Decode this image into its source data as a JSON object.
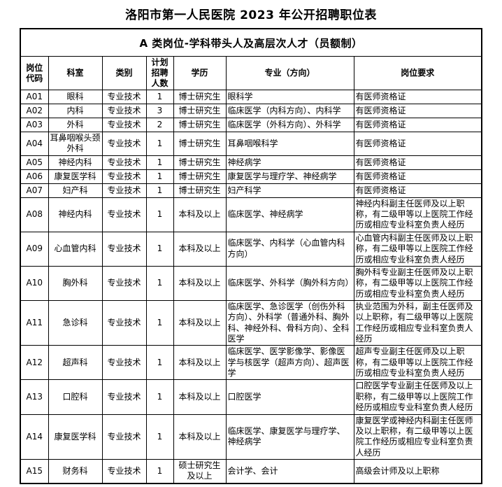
{
  "page": {
    "title": "洛阳市第一人民医院 2023 年公开招聘职位表"
  },
  "colors": {
    "background": "#ffffff",
    "text": "#000000",
    "border": "#000000"
  },
  "table": {
    "band_title": "A 类岗位-学科带头人及高层次人才（员额制）",
    "headers": {
      "code": "岗位代码",
      "dept": "科室",
      "category": "类别",
      "count": "计划招聘人数",
      "education": "学历",
      "major": "专业（方向）",
      "requirement": "岗位要求"
    },
    "rows": [
      {
        "code": "A01",
        "dept": "眼科",
        "category": "专业技术",
        "count": 1,
        "education": "博士研究生",
        "major": "眼科学",
        "requirement": "有医师资格证"
      },
      {
        "code": "A02",
        "dept": "内科",
        "category": "专业技术",
        "count": 3,
        "education": "博士研究生",
        "major": "临床医学（内科方向）、内科学",
        "requirement": "有医师资格证"
      },
      {
        "code": "A03",
        "dept": "外科",
        "category": "专业技术",
        "count": 2,
        "education": "博士研究生",
        "major": "临床医学（外科方向）、外科学",
        "requirement": "有医师资格证"
      },
      {
        "code": "A04",
        "dept": "耳鼻咽喉头颈外科",
        "category": "专业技术",
        "count": 1,
        "education": "博士研究生",
        "major": "耳鼻咽喉科学",
        "requirement": "有医师资格证"
      },
      {
        "code": "A05",
        "dept": "神经内科",
        "category": "专业技术",
        "count": 1,
        "education": "博士研究生",
        "major": "神经病学",
        "requirement": "有医师资格证"
      },
      {
        "code": "A06",
        "dept": "康复医学科",
        "category": "专业技术",
        "count": 1,
        "education": "博士研究生",
        "major": "康复医学与理疗学、神经病学",
        "requirement": "有医师资格证"
      },
      {
        "code": "A07",
        "dept": "妇产科",
        "category": "专业技术",
        "count": 1,
        "education": "博士研究生",
        "major": "妇产科学",
        "requirement": "有医师资格证"
      },
      {
        "code": "A08",
        "dept": "神经内科",
        "category": "专业技术",
        "count": 1,
        "education": "本科及以上",
        "major": "临床医学、神经病学",
        "requirement": "神经内科副主任医师及以上职称，有二级甲等以上医院工作经历或相应专业科室负责人经历"
      },
      {
        "code": "A09",
        "dept": "心血管内科",
        "category": "专业技术",
        "count": 1,
        "education": "本科及以上",
        "major": "临床医学、内科学（心血管内科方向）",
        "requirement": "心血管内科副主任医师及以上职称，有二级甲等以上医院工作经历或相应专业科室负责人经历"
      },
      {
        "code": "A10",
        "dept": "胸外科",
        "category": "专业技术",
        "count": 1,
        "education": "本科及以上",
        "major": "临床医学、外科学（胸外科方向）",
        "requirement": "胸外科专业副主任医师及以上职称，有二级甲等以上医院工作经历或相应专业科室负责人经历"
      },
      {
        "code": "A11",
        "dept": "急诊科",
        "category": "专业技术",
        "count": 1,
        "education": "本科及以上",
        "major": "临床医学、急诊医学（创伤外科方向）、外科学（普通外科、胸外科、神经外科、骨科方向）、全科医学",
        "requirement": "执业范围为外科，副主任医师及以上职称，有二级甲等以上医院工作经历或相应专业科室负责人经历"
      },
      {
        "code": "A12",
        "dept": "超声科",
        "category": "专业技术",
        "count": 1,
        "education": "本科及以上",
        "major": "临床医学、医学影像学、影像医学与核医学（超声方向）、超声医学",
        "requirement": "超声专业副主任医师及以上职称，有二级甲等以上医院工作经历或相应专业科室负责人经历"
      },
      {
        "code": "A13",
        "dept": "口腔科",
        "category": "专业技术",
        "count": 1,
        "education": "本科及以上",
        "major": "口腔医学",
        "requirement": "口腔医学专业副主任医师及以上职称，有二级甲等以上医院工作经历或相应专业科室负责人经历"
      },
      {
        "code": "A14",
        "dept": "康复医学科",
        "category": "专业技术",
        "count": 1,
        "education": "本科及以上",
        "major": "临床医学、康复医学与理疗学、神经病学",
        "requirement": "康复医学或神经内科副主任医师及以上职称，有二级甲等以上医院工作经历或相应专业科室负责人经历"
      },
      {
        "code": "A15",
        "dept": "财务科",
        "category": "专业技术",
        "count": 1,
        "education": "硕士研究生及以上",
        "major": "会计学、会计",
        "requirement": "高级会计师及以上职称"
      }
    ]
  }
}
